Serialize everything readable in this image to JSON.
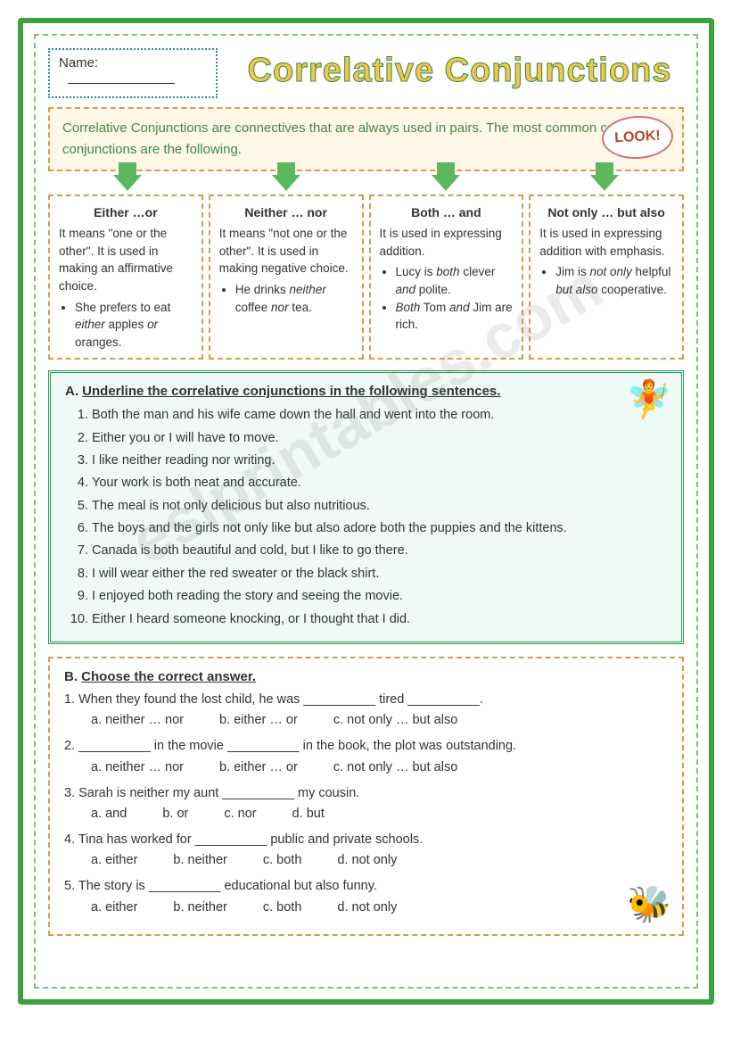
{
  "name_label": "Name:",
  "title": "Correlative Conjunctions",
  "intro": "Correlative Conjunctions are connectives that are always used in pairs. The most common correlative conjunctions are the following.",
  "look_badge": "LOOK!",
  "columns": [
    {
      "title": "Either …or",
      "desc": "It means \"one or the other\". It is used in making an affirmative choice.",
      "examples": [
        "She prefers to eat <em class='ital'>either</em> apples <em class='ital'>or</em> oranges."
      ]
    },
    {
      "title": "Neither … nor",
      "desc": "It means \"not one or the other\". It is used in making negative choice.",
      "examples": [
        "He drinks <em class='ital'>neither</em> coffee <em class='ital'>nor</em> tea."
      ]
    },
    {
      "title": "Both … and",
      "desc": "It is used in expressing addition.",
      "examples": [
        "Lucy is <em class='ital'>both</em> clever <em class='ital'>and</em> polite.",
        "<em class='ital'>Both</em> Tom <em class='ital'>and</em> Jim are rich."
      ]
    },
    {
      "title": "Not only … but also",
      "desc": "It is used in expressing addition with emphasis.",
      "examples": [
        "Jim is <em class='ital'>not only</em> helpful <em class='ital'>but also</em> cooperative."
      ]
    }
  ],
  "exA": {
    "label": "A.",
    "title": "Underline the correlative conjunctions in the following sentences.",
    "items": [
      "Both the man and his wife came down the hall and went into the room.",
      "Either you or I will have to move.",
      "I like neither reading nor writing.",
      "Your work is both neat and accurate.",
      "The meal is not only delicious but also nutritious.",
      "The boys and the girls not only like but also adore both the puppies and the kittens.",
      "Canada is both beautiful and cold, but I like to go there.",
      "I will wear either the red sweater or the black shirt.",
      "I enjoyed both reading the story and seeing the movie.",
      "Either I heard someone knocking, or I thought that I did."
    ]
  },
  "exB": {
    "label": "B.",
    "title": "Choose the correct answer.",
    "questions": [
      {
        "prompt": "1. When they found the lost child, he was __________ tired __________.",
        "opts": [
          "a. neither … nor",
          "b. either … or",
          "c. not only … but also"
        ]
      },
      {
        "prompt": "2. __________ in the movie __________ in the book, the plot was outstanding.",
        "opts": [
          "a. neither … nor",
          "b. either … or",
          "c. not only … but also"
        ]
      },
      {
        "prompt": "3. Sarah is neither my aunt __________ my cousin.",
        "opts": [
          "a. and",
          "b. or",
          "c. nor",
          "d. but"
        ]
      },
      {
        "prompt": "4. Tina has worked for __________ public and private schools.",
        "opts": [
          "a. either",
          "b. neither",
          "c. both",
          "d. not only"
        ]
      },
      {
        "prompt": "5. The story is __________ educational but also funny.",
        "opts": [
          "a. either",
          "b. neither",
          "c. both",
          "d. not only"
        ]
      }
    ]
  },
  "watermark": "eslprintables.com",
  "colors": {
    "outer_border": "#3ca03c",
    "dashed_orange": "#d89b4a",
    "green_box": "#2a9a5a",
    "title_fill": "#f5c64a",
    "title_stroke": "#2a8a4a"
  }
}
